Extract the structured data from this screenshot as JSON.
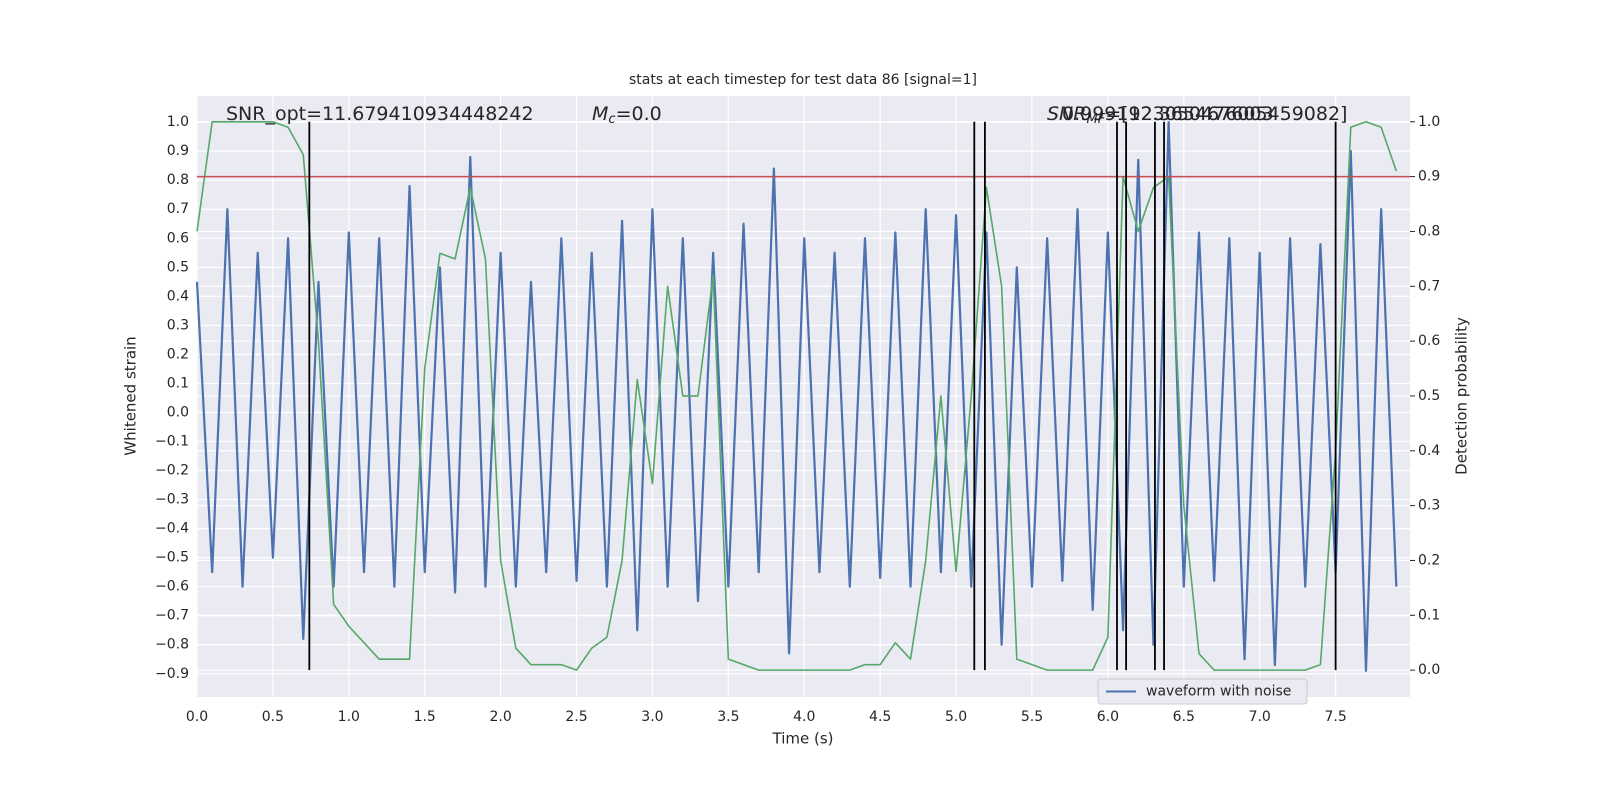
{
  "chart_data": {
    "type": "line",
    "title": "stats at each timestep for test data 86 [signal=1]",
    "xlabel": "Time (s)",
    "ylabel": "Whitened strain",
    "y2label": "Detection probability",
    "xlim": [
      0,
      7.99
    ],
    "ylim": [
      -0.98,
      1.09
    ],
    "y2lim": [
      -0.049,
      1.047
    ],
    "xticks": [
      {
        "value": 0,
        "label": "0.0"
      },
      {
        "value": 0.5,
        "label": "0.5"
      },
      {
        "value": 1,
        "label": "1.0"
      },
      {
        "value": 1.5,
        "label": "1.5"
      },
      {
        "value": 2,
        "label": "2.0"
      },
      {
        "value": 2.5,
        "label": "2.5"
      },
      {
        "value": 3,
        "label": "3.0"
      },
      {
        "value": 3.5,
        "label": "3.5"
      },
      {
        "value": 4,
        "label": "4.0"
      },
      {
        "value": 4.5,
        "label": "4.5"
      },
      {
        "value": 5,
        "label": "5.0"
      },
      {
        "value": 5.5,
        "label": "5.5"
      },
      {
        "value": 6,
        "label": "6.0"
      },
      {
        "value": 6.5,
        "label": "6.5"
      },
      {
        "value": 7,
        "label": "7.0"
      },
      {
        "value": 7.5,
        "label": "7.5"
      }
    ],
    "yticks": [
      {
        "value": -0.9,
        "label": "−0.9"
      },
      {
        "value": -0.8,
        "label": "−0.8"
      },
      {
        "value": -0.7,
        "label": "−0.7"
      },
      {
        "value": -0.6,
        "label": "−0.6"
      },
      {
        "value": -0.5,
        "label": "−0.5"
      },
      {
        "value": -0.4,
        "label": "−0.4"
      },
      {
        "value": -0.3,
        "label": "−0.3"
      },
      {
        "value": -0.2,
        "label": "−0.2"
      },
      {
        "value": -0.1,
        "label": "−0.1"
      },
      {
        "value": 0,
        "label": "0.0"
      },
      {
        "value": 0.1,
        "label": "0.1"
      },
      {
        "value": 0.2,
        "label": "0.2"
      },
      {
        "value": 0.3,
        "label": "0.3"
      },
      {
        "value": 0.4,
        "label": "0.4"
      },
      {
        "value": 0.5,
        "label": "0.5"
      },
      {
        "value": 0.6,
        "label": "0.6"
      },
      {
        "value": 0.7,
        "label": "0.7"
      },
      {
        "value": 0.8,
        "label": "0.8"
      },
      {
        "value": 0.9,
        "label": "0.9"
      },
      {
        "value": 1,
        "label": "1.0"
      }
    ],
    "y2ticks": [
      {
        "value": 0,
        "label": "0.0"
      },
      {
        "value": 0.1,
        "label": "0.1"
      },
      {
        "value": 0.2,
        "label": "0.2"
      },
      {
        "value": 0.3,
        "label": "0.3"
      },
      {
        "value": 0.4,
        "label": "0.4"
      },
      {
        "value": 0.5,
        "label": "0.5"
      },
      {
        "value": 0.6,
        "label": "0.6"
      },
      {
        "value": 0.7,
        "label": "0.7"
      },
      {
        "value": 0.8,
        "label": "0.8"
      },
      {
        "value": 0.9,
        "label": "0.9"
      },
      {
        "value": 1,
        "label": "1.0"
      }
    ],
    "grid": true,
    "legend_position": "lower right",
    "x": [
      0,
      0.1,
      0.2,
      0.3,
      0.4,
      0.5,
      0.6,
      0.7,
      0.8,
      0.9,
      1,
      1.1,
      1.2,
      1.3,
      1.4,
      1.5,
      1.6,
      1.7,
      1.8,
      1.9,
      2,
      2.1,
      2.2,
      2.3,
      2.4,
      2.5,
      2.6,
      2.7,
      2.8,
      2.9,
      3,
      3.1,
      3.2,
      3.3,
      3.4,
      3.5,
      3.6,
      3.7,
      3.8,
      3.9,
      4,
      4.1,
      4.2,
      4.3,
      4.4,
      4.5,
      4.6,
      4.7,
      4.8,
      4.9,
      5,
      5.1,
      5.2,
      5.3,
      5.4,
      5.5,
      5.6,
      5.7,
      5.8,
      5.9,
      6,
      6.1,
      6.2,
      6.3,
      6.4,
      6.5,
      6.6,
      6.7,
      6.8,
      6.9,
      7,
      7.1,
      7.2,
      7.3,
      7.4,
      7.5,
      7.6,
      7.7,
      7.8,
      7.9
    ],
    "series": [
      {
        "name": "waveform with noise",
        "color": "#4c72b0",
        "axis": "y",
        "values": [
          0.45,
          -0.55,
          0.7,
          -0.6,
          0.55,
          -0.5,
          0.6,
          -0.78,
          0.45,
          -0.6,
          0.62,
          -0.55,
          0.6,
          -0.6,
          0.78,
          -0.55,
          0.5,
          -0.62,
          0.88,
          -0.6,
          0.55,
          -0.6,
          0.45,
          -0.55,
          0.6,
          -0.58,
          0.55,
          -0.6,
          0.66,
          -0.75,
          0.7,
          -0.6,
          0.6,
          -0.65,
          0.55,
          -0.6,
          0.65,
          -0.55,
          0.84,
          -0.83,
          0.6,
          -0.55,
          0.55,
          -0.6,
          0.6,
          -0.57,
          0.62,
          -0.6,
          0.7,
          -0.55,
          0.68,
          -0.6,
          0.62,
          -0.8,
          0.5,
          -0.6,
          0.6,
          -0.58,
          0.7,
          -0.68,
          0.62,
          -0.75,
          0.87,
          -0.8,
          1.0,
          -0.6,
          0.62,
          -0.58,
          0.6,
          -0.85,
          0.55,
          -0.87,
          0.6,
          -0.6,
          0.58,
          -0.55,
          0.9,
          -0.89,
          0.7,
          -0.6
        ]
      },
      {
        "color": "#55a868",
        "axis": "y2",
        "values": [
          0.8,
          1,
          1,
          1,
          1,
          1,
          0.99,
          0.94,
          0.6,
          0.12,
          0.08,
          0.05,
          0.02,
          0.02,
          0.02,
          0.55,
          0.76,
          0.75,
          0.88,
          0.75,
          0.2,
          0.04,
          0.01,
          0.01,
          0.01,
          0,
          0.04,
          0.06,
          0.2,
          0.53,
          0.34,
          0.7,
          0.5,
          0.5,
          0.72,
          0.02,
          0.01,
          0,
          0,
          0,
          0,
          0,
          0,
          0,
          0.01,
          0.01,
          0.05,
          0.02,
          0.2,
          0.5,
          0.18,
          0.5,
          0.88,
          0.7,
          0.02,
          0.01,
          0,
          0,
          0,
          0,
          0.06,
          0.9,
          0.8,
          0.88,
          0.9,
          0.3,
          0.03,
          0,
          0,
          0,
          0,
          0,
          0,
          0,
          0.01,
          0.4,
          0.99,
          1,
          0.99,
          0.91
        ]
      }
    ],
    "hline": {
      "value": 0.9,
      "axis": "y2",
      "color": "#c44e52"
    },
    "vlines": {
      "x": [
        0.74,
        5.12,
        5.19,
        6.06,
        6.12,
        6.31,
        6.37,
        7.5
      ],
      "ymin": 0,
      "ymax": 1,
      "axis": "y2",
      "color": "#000000"
    },
    "annotations": [
      {
        "text": "SNR_opt=11.679410934448242"
      },
      {
        "base": "M",
        "sub": "c",
        "text": "=0.0"
      },
      {
        "base": "SNR",
        "sub": "MF",
        "text": "=[12.365467605459082]"
      },
      {
        "text": "0.9991923050476003"
      }
    ]
  }
}
